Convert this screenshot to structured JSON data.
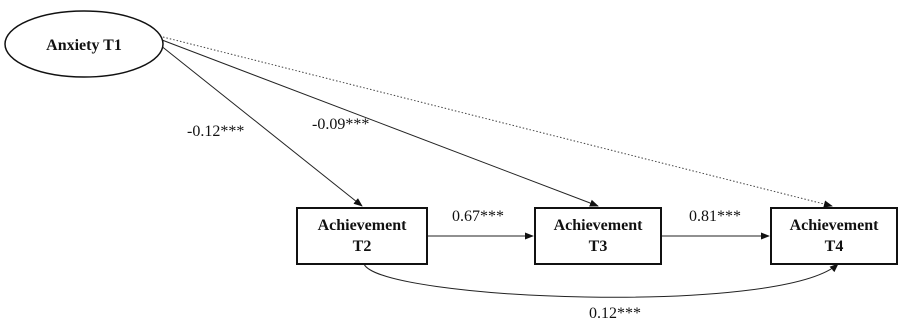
{
  "nodes": {
    "anxiety_t1": {
      "label": "Anxiety T1"
    },
    "achievement_t2": {
      "line1": "Achievement",
      "line2": "T2"
    },
    "achievement_t3": {
      "line1": "Achievement",
      "line2": "T3"
    },
    "achievement_t4": {
      "line1": "Achievement",
      "line2": "T4"
    }
  },
  "edges": {
    "anx_to_t2": {
      "label": "-0.12***",
      "style": "solid"
    },
    "anx_to_t3": {
      "label": "-0.09***",
      "style": "solid"
    },
    "anx_to_t4": {
      "label": "",
      "style": "dotted"
    },
    "t2_to_t3": {
      "label": "0.67***",
      "style": "solid"
    },
    "t3_to_t4": {
      "label": "0.81***",
      "style": "solid"
    },
    "t2_to_t4": {
      "label": "0.12***",
      "style": "solid"
    }
  },
  "colors": {
    "ink": "#111111",
    "background": "#ffffff"
  }
}
